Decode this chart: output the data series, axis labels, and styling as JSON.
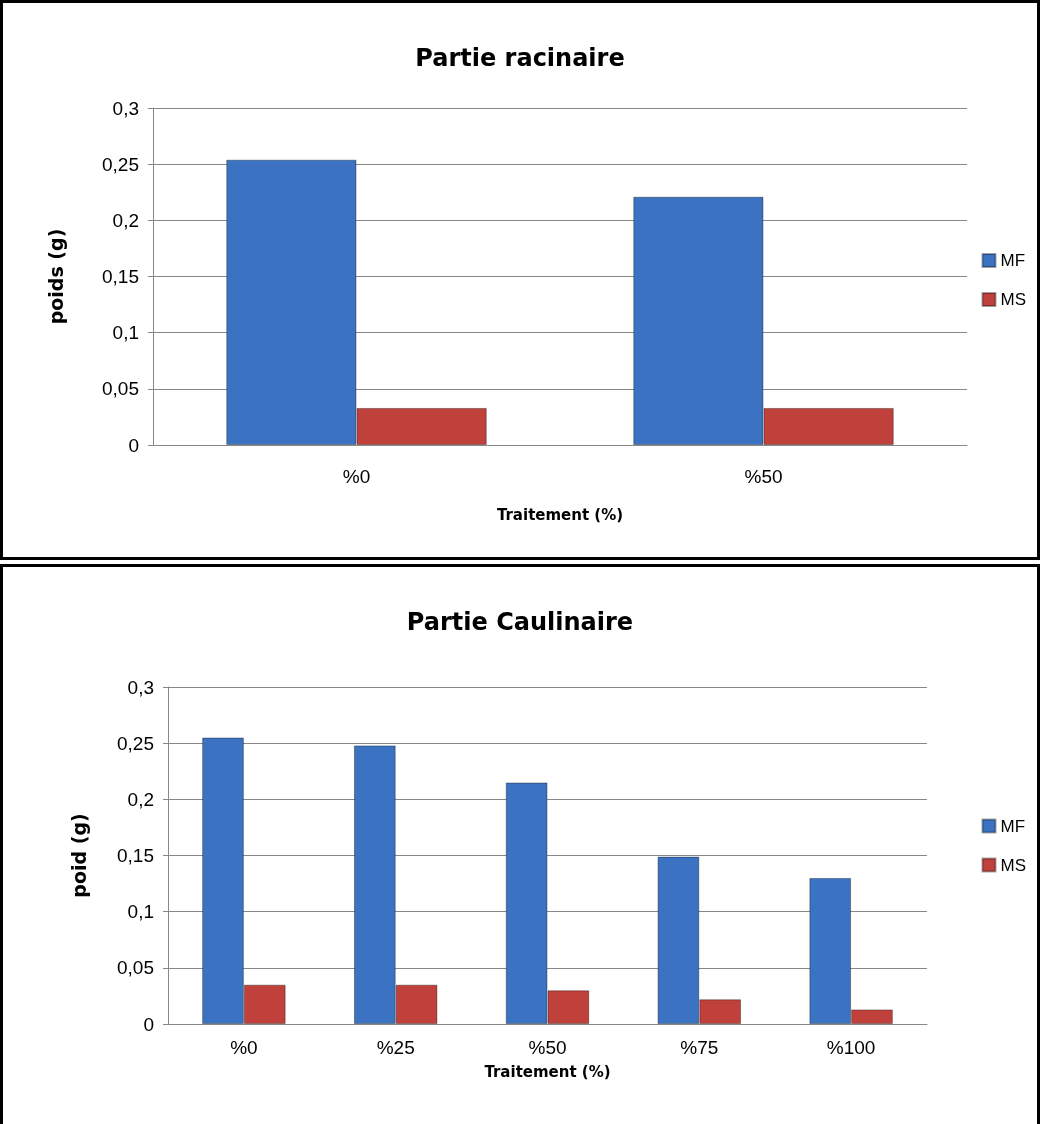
{
  "chart_data": [
    {
      "type": "bar",
      "title": "Partie racinaire",
      "xlabel": "Traitement (%)",
      "ylabel": "poids (g)",
      "categories": [
        "%0",
        "%50"
      ],
      "series": [
        {
          "name": "MF",
          "color": "#3b73c2",
          "values": [
            0.254,
            0.221
          ]
        },
        {
          "name": "MS",
          "color": "#c0403b",
          "values": [
            0.033,
            0.033
          ]
        }
      ],
      "ylim": [
        0,
        0.3
      ],
      "yticks": [
        0,
        {
          "value": 0.05,
          "label": "0,05"
        },
        {
          "value": 0.1,
          "label": "0,1"
        },
        {
          "value": 0.15,
          "label": "0,15"
        },
        {
          "value": 0.2,
          "label": "0,2"
        },
        {
          "value": 0.25,
          "label": "0,25"
        },
        {
          "value": 0.3,
          "label": "0,3"
        }
      ],
      "grid": "y",
      "legend": "right"
    },
    {
      "type": "bar",
      "title": "Partie Caulinaire",
      "xlabel": "Traitement (%)",
      "ylabel": "poid (g)",
      "categories": [
        "%0",
        "%25",
        "%50",
        "%75",
        "%100"
      ],
      "series": [
        {
          "name": "MF",
          "color": "#3b73c2",
          "values": [
            0.255,
            0.248,
            0.215,
            0.149,
            0.13
          ]
        },
        {
          "name": "MS",
          "color": "#c0403b",
          "values": [
            0.035,
            0.035,
            0.03,
            0.022,
            0.013
          ]
        }
      ],
      "ylim": [
        0,
        0.3
      ],
      "yticks": [
        0,
        {
          "value": 0.05,
          "label": "0,05"
        },
        {
          "value": 0.1,
          "label": "0,1"
        },
        {
          "value": 0.15,
          "label": "0,15"
        },
        {
          "value": 0.2,
          "label": "0,2"
        },
        {
          "value": 0.25,
          "label": "0,25"
        },
        {
          "value": 0.3,
          "label": "0,3"
        }
      ],
      "grid": "y",
      "legend": "right"
    }
  ]
}
